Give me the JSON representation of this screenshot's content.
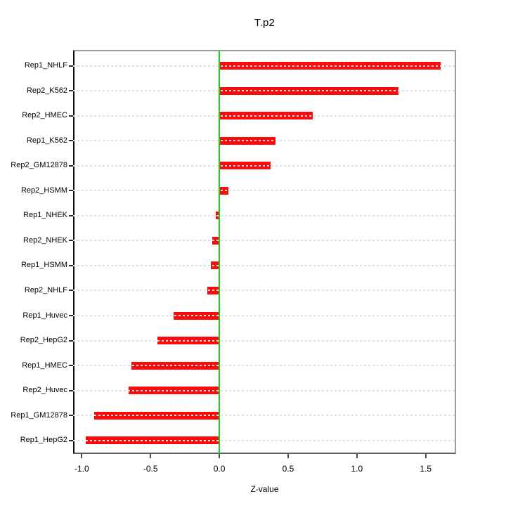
{
  "figure": {
    "kind": "R horizontal barplot"
  },
  "chart_data": {
    "type": "bar",
    "orientation": "horizontal",
    "title": "T.p2",
    "xlabel": "Z-value",
    "ylabel": "",
    "categories": [
      "Rep1_NHLF",
      "Rep2_K562",
      "Rep2_HMEC",
      "Rep1_K562",
      "Rep2_GM12878",
      "Rep2_HSMM",
      "Rep1_NHEK",
      "Rep2_NHEK",
      "Rep1_HSMM",
      "Rep2_NHLF",
      "Rep1_Huvec",
      "Rep2_HepG2",
      "Rep1_HMEC",
      "Rep2_Huvec",
      "Rep1_GM12878",
      "Rep1_HepG2"
    ],
    "values": [
      1.61,
      1.3,
      0.68,
      0.41,
      0.37,
      0.065,
      -0.025,
      -0.05,
      -0.06,
      -0.085,
      -0.335,
      -0.45,
      -0.64,
      -0.66,
      -0.91,
      -0.97
    ],
    "x_tick_labels": [
      "-1.0",
      "-0.5",
      "0.0",
      "0.5",
      "1.0",
      "1.5"
    ],
    "x_tick_values": [
      -1.0,
      -0.5,
      0.0,
      0.5,
      1.0,
      1.5
    ],
    "xlim": [
      -1.063,
      1.721
    ],
    "zero_reference_line": 0.0,
    "grid": "horizontal dashed line at each category, drawn over bars",
    "legend": null,
    "colors": {
      "bar": "#fb0b0b",
      "zero_line": "#0fd60f",
      "grid_line": "#e0e0e0",
      "box_border": "#9c9c9c",
      "axis_line": "#0a0a0a",
      "tick": "#4d4d4d",
      "text": "#000000",
      "background": "#ffffff"
    }
  }
}
